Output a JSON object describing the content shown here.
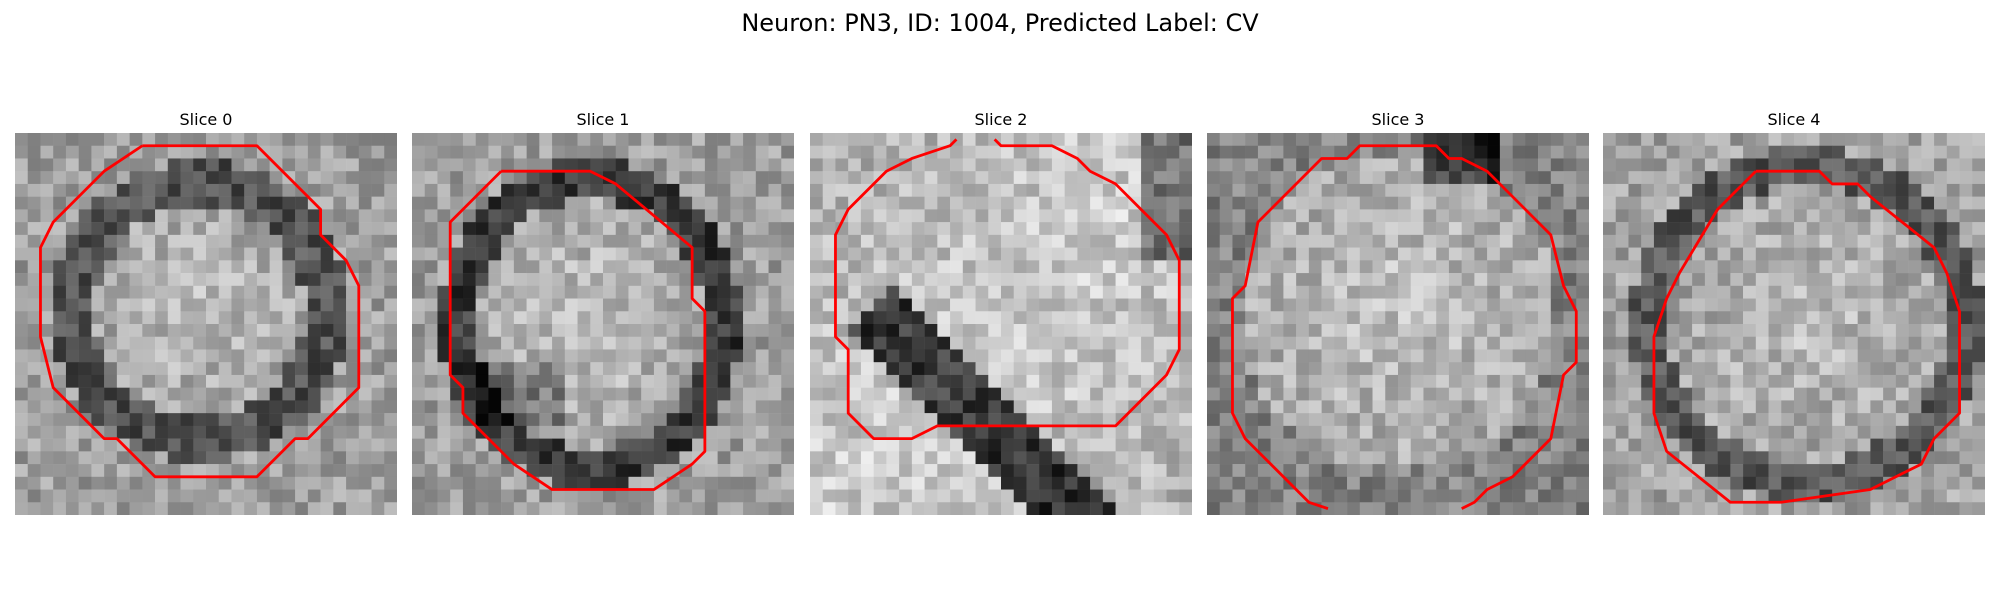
{
  "figure": {
    "title": "Neuron: PN3, ID: 1004, Predicted Label: CV"
  },
  "image": {
    "colormap": "grayscale",
    "contour_color": "#ff0000"
  },
  "panels": [
    {
      "title": "Slice 0"
    },
    {
      "title": "Slice 1"
    },
    {
      "title": "Slice 2"
    },
    {
      "title": "Slice 3"
    },
    {
      "title": "Slice 4"
    }
  ]
}
